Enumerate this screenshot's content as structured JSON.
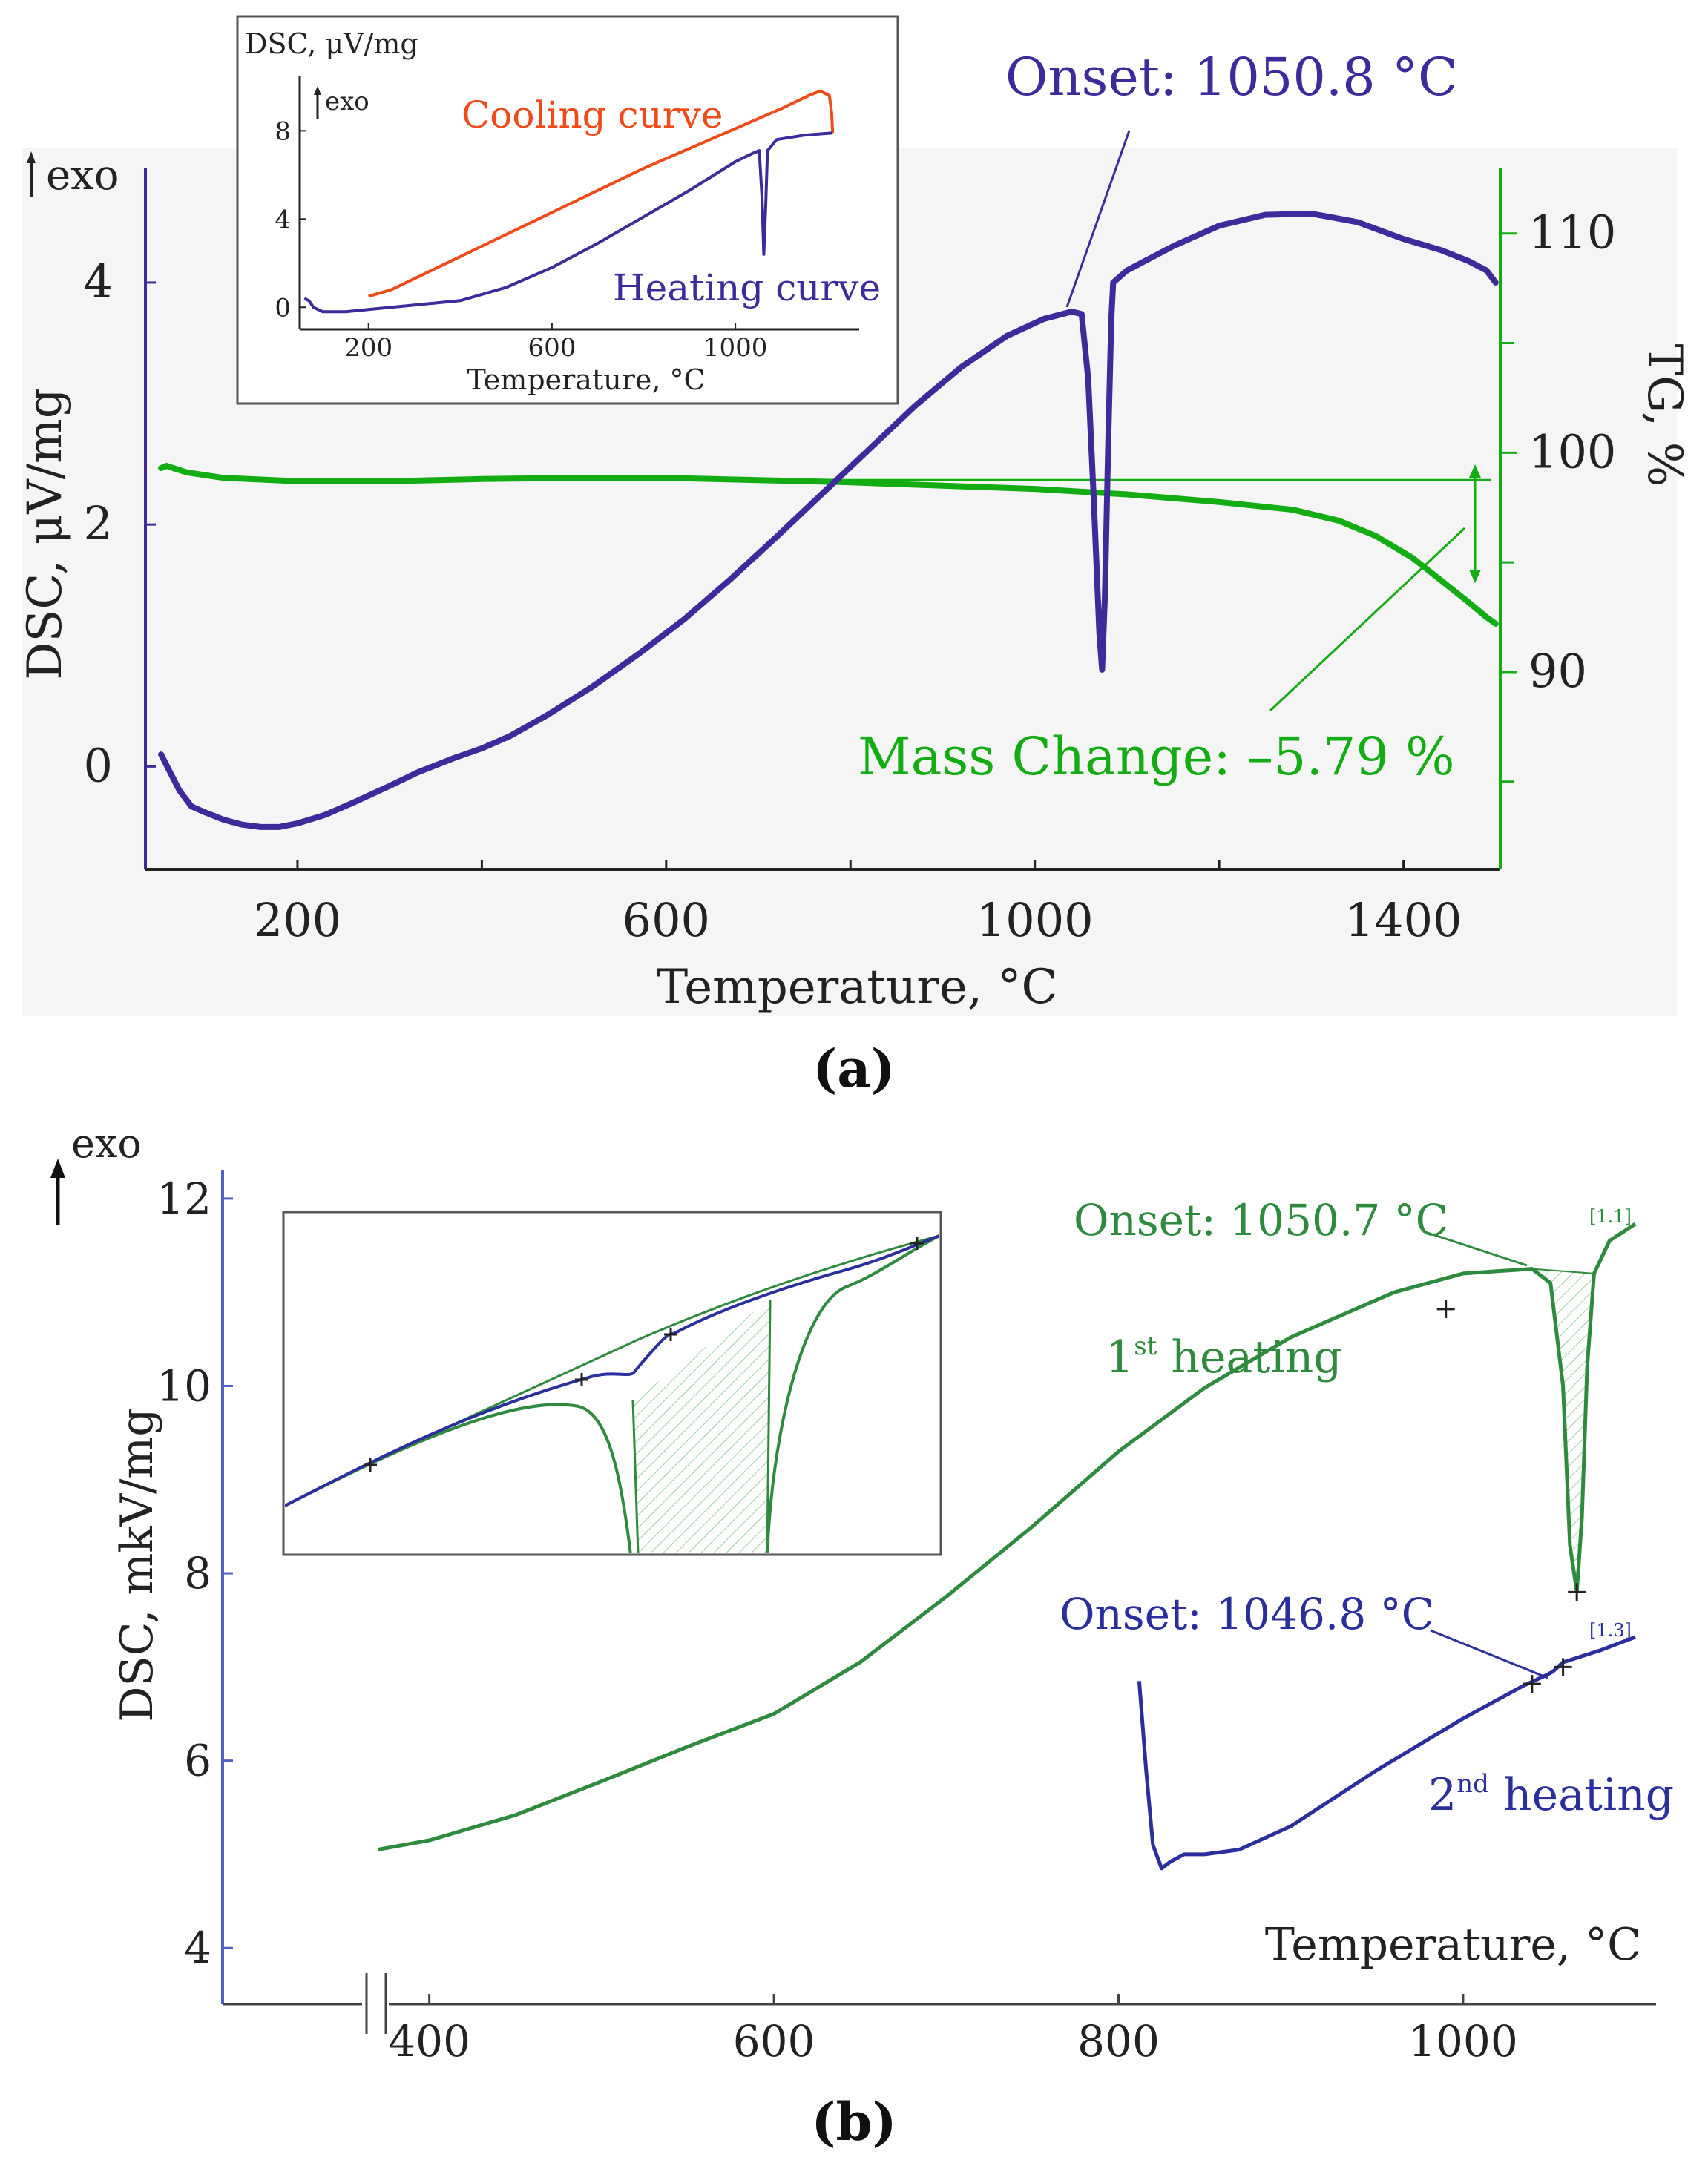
{
  "panel_labels": [
    "(a)",
    "(b)"
  ],
  "colors": {
    "dsc": "#3f2a9c",
    "tg": "#13ac13",
    "cooling": "#ef4a18",
    "green_b": "#2e8a3c",
    "blue_b": "#2b2f9e",
    "axis_b": "#5060c8",
    "text": "#1a1a1a"
  },
  "chart_data": [
    {
      "id": "a-main",
      "type": "line",
      "xlabel": "Temperature, °C",
      "ylabel": "DSC, μV/mg",
      "y2label": "TG, %",
      "exo_label": "exo",
      "xlim": [
        35,
        1505
      ],
      "ylim": [
        -0.85,
        4.95
      ],
      "y2lim": [
        81,
        113
      ],
      "xticks": [
        200,
        600,
        1000,
        1400
      ],
      "xticks_minor": [
        400,
        800,
        1200
      ],
      "yticks": [
        0,
        2,
        4
      ],
      "y2ticks": [
        90,
        100,
        110
      ],
      "y2ticks_minor": [
        85,
        95,
        105
      ],
      "series": [
        {
          "id": "dsc",
          "axis": "left",
          "points": [
            [
              52,
              0.1
            ],
            [
              62,
              -0.05
            ],
            [
              72,
              -0.2
            ],
            [
              85,
              -0.33
            ],
            [
              100,
              -0.38
            ],
            [
              120,
              -0.44
            ],
            [
              140,
              -0.48
            ],
            [
              160,
              -0.5
            ],
            [
              180,
              -0.5
            ],
            [
              200,
              -0.47
            ],
            [
              230,
              -0.4
            ],
            [
              260,
              -0.3
            ],
            [
              300,
              -0.16
            ],
            [
              330,
              -0.05
            ],
            [
              370,
              0.07
            ],
            [
              400,
              0.15
            ],
            [
              430,
              0.25
            ],
            [
              470,
              0.42
            ],
            [
              520,
              0.66
            ],
            [
              570,
              0.93
            ],
            [
              620,
              1.22
            ],
            [
              670,
              1.55
            ],
            [
              720,
              1.9
            ],
            [
              770,
              2.26
            ],
            [
              820,
              2.62
            ],
            [
              870,
              2.98
            ],
            [
              920,
              3.3
            ],
            [
              970,
              3.56
            ],
            [
              1010,
              3.7
            ],
            [
              1040,
              3.76
            ],
            [
              1050.8,
              3.74
            ],
            [
              1058,
              3.2
            ],
            [
              1064,
              2.2
            ],
            [
              1070,
              1.1
            ],
            [
              1073,
              0.8
            ],
            [
              1076,
              1.4
            ],
            [
              1080,
              2.8
            ],
            [
              1083,
              3.7
            ],
            [
              1085,
              4.0
            ],
            [
              1100,
              4.1
            ],
            [
              1150,
              4.3
            ],
            [
              1200,
              4.47
            ],
            [
              1250,
              4.56
            ],
            [
              1300,
              4.57
            ],
            [
              1350,
              4.5
            ],
            [
              1400,
              4.36
            ],
            [
              1440,
              4.27
            ],
            [
              1470,
              4.18
            ],
            [
              1490,
              4.1
            ],
            [
              1500,
              4.0
            ]
          ]
        },
        {
          "id": "tg",
          "axis": "right",
          "points": [
            [
              52,
              99.3
            ],
            [
              58,
              99.4
            ],
            [
              65,
              99.3
            ],
            [
              80,
              99.1
            ],
            [
              120,
              98.85
            ],
            [
              200,
              98.7
            ],
            [
              300,
              98.7
            ],
            [
              400,
              98.8
            ],
            [
              500,
              98.85
            ],
            [
              600,
              98.85
            ],
            [
              700,
              98.75
            ],
            [
              800,
              98.65
            ],
            [
              900,
              98.5
            ],
            [
              1000,
              98.35
            ],
            [
              1100,
              98.1
            ],
            [
              1200,
              97.75
            ],
            [
              1280,
              97.4
            ],
            [
              1330,
              96.9
            ],
            [
              1370,
              96.2
            ],
            [
              1410,
              95.2
            ],
            [
              1440,
              94.2
            ],
            [
              1470,
              93.2
            ],
            [
              1490,
              92.5
            ],
            [
              1500,
              92.2
            ]
          ]
        },
        {
          "id": "tg-baseline",
          "axis": "right",
          "points": [
            [
              700,
              98.75
            ],
            [
              1495,
              98.75
            ]
          ]
        }
      ],
      "annotations": [
        {
          "id": "onset",
          "text": "Onset: 1050.8 °C",
          "x": 1050.8
        },
        {
          "id": "mass",
          "text": "Mass Change: –5.79 %",
          "value": -5.79
        }
      ]
    },
    {
      "id": "a-inset",
      "type": "line",
      "ylabel": "DSC, μV/mg",
      "xlabel": "Temperature, °C",
      "exo_label": "exo",
      "xlim": [
        50,
        1270
      ],
      "ylim": [
        -1,
        10.5
      ],
      "xticks": [
        200,
        600,
        1000
      ],
      "yticks": [
        0,
        4,
        8
      ],
      "series": [
        {
          "id": "cooling",
          "name": "Cooling curve",
          "points": [
            [
              200,
              0.5
            ],
            [
              250,
              0.8
            ],
            [
              400,
              2.3
            ],
            [
              600,
              4.3
            ],
            [
              800,
              6.3
            ],
            [
              1000,
              8.1
            ],
            [
              1100,
              9.0
            ],
            [
              1160,
              9.6
            ],
            [
              1185,
              9.8
            ],
            [
              1205,
              9.6
            ],
            [
              1210,
              8.8
            ],
            [
              1212,
              7.9
            ]
          ]
        },
        {
          "id": "heating",
          "name": "Heating curve",
          "points": [
            [
              60,
              0.4
            ],
            [
              70,
              0.3
            ],
            [
              80,
              0.0
            ],
            [
              100,
              -0.2
            ],
            [
              150,
              -0.2
            ],
            [
              200,
              -0.1
            ],
            [
              300,
              0.1
            ],
            [
              400,
              0.3
            ],
            [
              500,
              0.9
            ],
            [
              600,
              1.8
            ],
            [
              700,
              2.9
            ],
            [
              800,
              4.1
            ],
            [
              900,
              5.3
            ],
            [
              1000,
              6.6
            ],
            [
              1040,
              7.0
            ],
            [
              1052,
              7.1
            ],
            [
              1058,
              5.0
            ],
            [
              1062,
              2.4
            ],
            [
              1066,
              4.5
            ],
            [
              1070,
              7.1
            ],
            [
              1090,
              7.6
            ],
            [
              1150,
              7.8
            ],
            [
              1212,
              7.9
            ]
          ]
        }
      ]
    },
    {
      "id": "b-main",
      "type": "line",
      "xlabel": "Temperature, °C",
      "ylabel": "DSC, mkV/mg",
      "exo_label": "exo",
      "xlim": [
        280,
        1112
      ],
      "ylim": [
        3.4,
        12.3
      ],
      "xticks": [
        400,
        600,
        800,
        1000
      ],
      "yticks": [
        4,
        6,
        8,
        10,
        12
      ],
      "series": [
        {
          "id": "heating1",
          "name": "1st heating",
          "points": [
            [
              370,
              5.05
            ],
            [
              400,
              5.15
            ],
            [
              450,
              5.42
            ],
            [
              500,
              5.78
            ],
            [
              550,
              6.15
            ],
            [
              600,
              6.5
            ],
            [
              650,
              7.05
            ],
            [
              700,
              7.75
            ],
            [
              750,
              8.5
            ],
            [
              800,
              9.3
            ],
            [
              850,
              9.98
            ],
            [
              900,
              10.52
            ],
            [
              960,
              11.0
            ],
            [
              1000,
              11.2
            ],
            [
              1040,
              11.25
            ],
            [
              1050.7,
              11.1
            ],
            [
              1058,
              10.0
            ],
            [
              1062,
              8.3
            ],
            [
              1066,
              7.8
            ],
            [
              1069,
              8.6
            ],
            [
              1072,
              10.2
            ],
            [
              1076,
              11.2
            ],
            [
              1085,
              11.55
            ],
            [
              1100,
              11.73
            ]
          ]
        },
        {
          "id": "heating2",
          "name": "2nd heating",
          "points": [
            [
              812,
              6.85
            ],
            [
              816,
              5.9
            ],
            [
              820,
              5.1
            ],
            [
              825,
              4.85
            ],
            [
              830,
              4.92
            ],
            [
              838,
              5.0
            ],
            [
              850,
              5.0
            ],
            [
              870,
              5.05
            ],
            [
              900,
              5.3
            ],
            [
              950,
              5.9
            ],
            [
              1000,
              6.45
            ],
            [
              1035,
              6.8
            ],
            [
              1046.8,
              6.9
            ],
            [
              1052,
              6.95
            ],
            [
              1058,
              7.05
            ],
            [
              1080,
              7.18
            ],
            [
              1100,
              7.32
            ]
          ]
        }
      ],
      "annotations": [
        {
          "id": "onset1",
          "text": "Onset: 1050.7 °C",
          "x": 1050.7
        },
        {
          "id": "onset2",
          "text": "Onset: 1046.8 °C",
          "x": 1046.8
        },
        {
          "id": "tag1",
          "text": "[1.1]"
        },
        {
          "id": "tag2",
          "text": "[1.3]"
        }
      ]
    },
    {
      "id": "b-inset",
      "type": "line",
      "note_visible_text": "",
      "series": [
        {
          "id": "inset-green-upper"
        },
        {
          "id": "inset-green-lower"
        },
        {
          "id": "inset-blue"
        }
      ]
    }
  ]
}
